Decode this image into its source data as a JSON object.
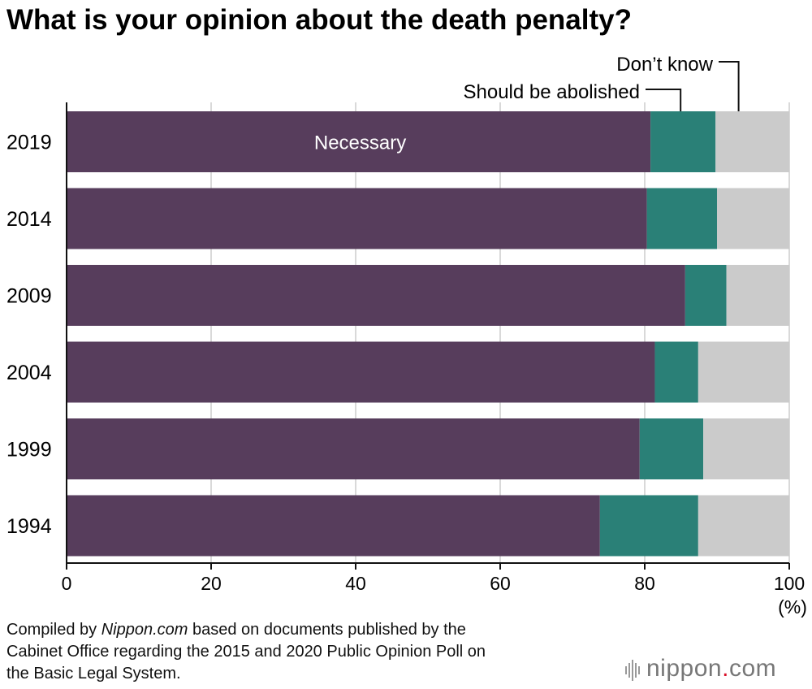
{
  "title": "What is your opinion about the death penalty?",
  "chart_data": {
    "type": "bar",
    "orientation": "horizontal",
    "stacked": true,
    "categories": [
      "2019",
      "2014",
      "2009",
      "2004",
      "1999",
      "1994"
    ],
    "series": [
      {
        "name": "Necessary",
        "color": "#573d5c",
        "values": [
          80.8,
          80.3,
          85.6,
          81.4,
          79.3,
          73.8
        ]
      },
      {
        "name": "Should be abolished",
        "color": "#2a8077",
        "values": [
          9.0,
          9.7,
          5.7,
          6.0,
          8.8,
          13.6
        ]
      },
      {
        "name": "Don’t know",
        "color": "#cbcbcb",
        "values": [
          10.2,
          10.0,
          8.7,
          12.6,
          11.9,
          12.6
        ]
      }
    ],
    "xlim": [
      0,
      100
    ],
    "xticks": [
      "0",
      "20",
      "40",
      "60",
      "80",
      "100"
    ],
    "unit": "(%)",
    "grid": true,
    "legend": "annotations on first bar"
  },
  "source": {
    "prefix": "Compiled by ",
    "publisher": "Nippon.com",
    "rest_line1": " based on documents published by the",
    "line2": "Cabinet Office regarding the 2015 and 2020 Public Opinion Poll on",
    "line3": "the Basic Legal System."
  },
  "logo": {
    "name": "nippon",
    "dot": ".",
    "tld": "com"
  }
}
